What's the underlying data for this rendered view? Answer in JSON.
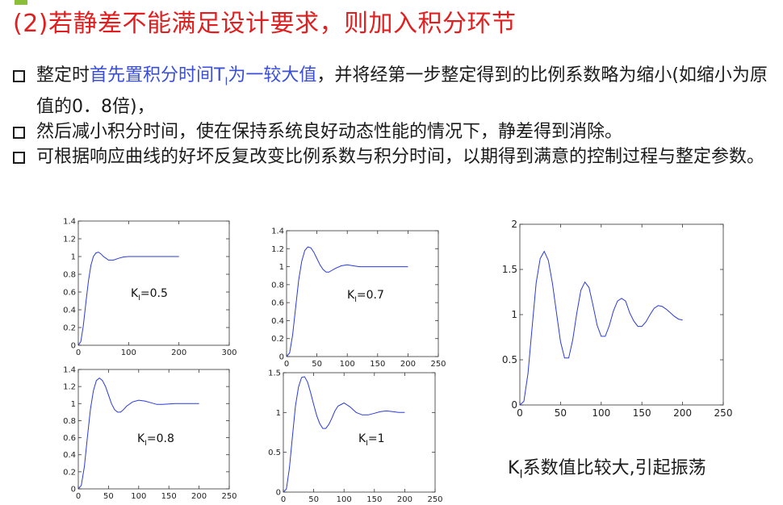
{
  "slide": {
    "title": "(2)若静差不能满足设计要求，则加入积分环节",
    "bullets": [
      {
        "pre": "整定时",
        "highlight_a": "首先置积分时间T",
        "highlight_sub": "I",
        "highlight_b": "为一较大值",
        "post": "，并将经第一步整定得到的比例系数略为缩小(如缩小为原值的0．8倍)，"
      },
      {
        "text": "然后减小积分时间，使在保持系统良好动态性能的情况下，静差得到消除。"
      },
      {
        "text": "可根据响应曲线的好坏反复改变比例系数与积分时间，以期得到满意的控制过程与整定参数。"
      }
    ],
    "caption": {
      "k": "K",
      "sub": "I",
      "text": "系数值比较大,引起振荡"
    },
    "colors": {
      "title": "#e02020",
      "highlight": "#3a4ddb",
      "curve": "#2a3bd8"
    }
  },
  "chart_data": [
    {
      "type": "line",
      "annotation": {
        "k": "K",
        "sub": "I",
        "value": "=0.5"
      },
      "xlim": [
        0,
        300
      ],
      "ylim": [
        0,
        1.4
      ],
      "xticks": [
        0,
        100,
        200,
        300
      ],
      "yticks": [
        0,
        0.2,
        0.4,
        0.6,
        0.8,
        1,
        1.2,
        1.4
      ],
      "xticklabels": [
        "0",
        "100",
        "200",
        "300"
      ],
      "yticklabels": [
        "0",
        "0.2",
        "0.4",
        "0.6",
        "0.8",
        "1",
        "1.2",
        "1.4"
      ],
      "series": [
        {
          "x": [
            0,
            5,
            10,
            15,
            20,
            25,
            30,
            35,
            40,
            45,
            50,
            55,
            60,
            70,
            80,
            90,
            100,
            120,
            140,
            160,
            180,
            200
          ],
          "y": [
            0,
            0.04,
            0.22,
            0.48,
            0.72,
            0.9,
            1.0,
            1.04,
            1.05,
            1.03,
            1.0,
            0.98,
            0.96,
            0.96,
            0.98,
            0.995,
            1.0,
            1.0,
            1.0,
            1.0,
            1.0,
            1.0
          ]
        }
      ]
    },
    {
      "type": "line",
      "annotation": {
        "k": "K",
        "sub": "I",
        "value": "=0.7"
      },
      "xlim": [
        0,
        250
      ],
      "ylim": [
        0,
        1.4
      ],
      "xticks": [
        0,
        50,
        100,
        150,
        200,
        250
      ],
      "yticks": [
        0,
        0.2,
        0.4,
        0.6,
        0.8,
        1,
        1.2,
        1.4
      ],
      "xticklabels": [
        "0",
        "50",
        "100",
        "150",
        "200",
        "250"
      ],
      "yticklabels": [
        "0",
        "0.2",
        "0.4",
        "0.6",
        "0.8",
        "1",
        "1.2",
        "1.4"
      ],
      "series": [
        {
          "x": [
            0,
            5,
            10,
            15,
            20,
            25,
            30,
            35,
            40,
            45,
            50,
            55,
            60,
            65,
            70,
            75,
            80,
            90,
            100,
            110,
            120,
            140,
            160,
            180,
            200
          ],
          "y": [
            0,
            0.04,
            0.24,
            0.55,
            0.85,
            1.06,
            1.18,
            1.22,
            1.21,
            1.16,
            1.09,
            1.02,
            0.97,
            0.94,
            0.94,
            0.96,
            0.98,
            1.01,
            1.02,
            1.01,
            1.0,
            1.0,
            1.0,
            1.0,
            1.0
          ]
        }
      ]
    },
    {
      "type": "line",
      "annotation": {
        "k": "K",
        "sub": "I",
        "value": "=0.8"
      },
      "xlim": [
        0,
        250
      ],
      "ylim": [
        0,
        1.4
      ],
      "xticks": [
        0,
        50,
        100,
        150,
        200,
        250
      ],
      "yticks": [
        0,
        0.2,
        0.4,
        0.6,
        0.8,
        1,
        1.2,
        1.4
      ],
      "xticklabels": [
        "0",
        "50",
        "100",
        "150",
        "200",
        "250"
      ],
      "yticklabels": [
        "0",
        "0.2",
        "0.4",
        "0.6",
        "0.8",
        "1",
        "1.2",
        "1.4"
      ],
      "series": [
        {
          "x": [
            0,
            5,
            10,
            15,
            20,
            25,
            30,
            35,
            40,
            45,
            50,
            55,
            60,
            65,
            70,
            75,
            80,
            90,
            100,
            110,
            120,
            130,
            140,
            160,
            180,
            200
          ],
          "y": [
            0,
            0.04,
            0.26,
            0.6,
            0.93,
            1.15,
            1.27,
            1.3,
            1.27,
            1.2,
            1.1,
            1.0,
            0.93,
            0.9,
            0.9,
            0.93,
            0.97,
            1.02,
            1.04,
            1.03,
            1.01,
            0.99,
            0.99,
            1.0,
            1.0,
            1.0
          ]
        }
      ]
    },
    {
      "type": "line",
      "annotation": {
        "k": "K",
        "sub": "I",
        "value": "=1"
      },
      "xlim": [
        0,
        250
      ],
      "ylim": [
        0,
        1.5
      ],
      "xticks": [
        0,
        50,
        100,
        150,
        200,
        250
      ],
      "yticks": [
        0,
        0.5,
        1,
        1.5
      ],
      "xticklabels": [
        "0",
        "50",
        "100",
        "150",
        "200",
        "250"
      ],
      "yticklabels": [
        "0",
        "0.5",
        "1",
        "1.5"
      ],
      "series": [
        {
          "x": [
            0,
            5,
            10,
            15,
            20,
            25,
            30,
            35,
            40,
            45,
            50,
            55,
            60,
            65,
            70,
            75,
            80,
            85,
            90,
            100,
            110,
            120,
            130,
            140,
            150,
            160,
            170,
            180,
            190,
            200
          ],
          "y": [
            0,
            0.04,
            0.3,
            0.7,
            1.08,
            1.32,
            1.44,
            1.45,
            1.38,
            1.25,
            1.1,
            0.96,
            0.86,
            0.8,
            0.8,
            0.85,
            0.93,
            1.02,
            1.08,
            1.12,
            1.07,
            1.0,
            0.97,
            0.97,
            0.99,
            1.01,
            1.02,
            1.01,
            1.0,
            1.0
          ]
        }
      ]
    },
    {
      "type": "line",
      "xlim": [
        0,
        250
      ],
      "ylim": [
        0,
        2
      ],
      "xticks": [
        0,
        50,
        100,
        150,
        200,
        250
      ],
      "yticks": [
        0,
        0.5,
        1,
        1.5,
        2
      ],
      "xticklabels": [
        "0",
        "50",
        "100",
        "150",
        "200",
        "250"
      ],
      "yticklabels": [
        "0",
        "0.5",
        "1",
        "1.5",
        "2"
      ],
      "series": [
        {
          "x": [
            0,
            5,
            10,
            15,
            20,
            25,
            30,
            35,
            40,
            45,
            50,
            55,
            60,
            65,
            70,
            75,
            80,
            85,
            90,
            95,
            100,
            105,
            110,
            115,
            120,
            125,
            130,
            135,
            140,
            145,
            150,
            155,
            160,
            165,
            170,
            175,
            180,
            185,
            190,
            195,
            200
          ],
          "y": [
            0,
            0.04,
            0.35,
            0.85,
            1.35,
            1.62,
            1.7,
            1.6,
            1.35,
            1.02,
            0.7,
            0.52,
            0.52,
            0.72,
            1.02,
            1.27,
            1.36,
            1.3,
            1.1,
            0.88,
            0.76,
            0.76,
            0.88,
            1.04,
            1.15,
            1.18,
            1.15,
            1.02,
            0.93,
            0.87,
            0.87,
            0.92,
            1.0,
            1.07,
            1.1,
            1.09,
            1.06,
            1.02,
            0.98,
            0.95,
            0.94
          ]
        }
      ]
    }
  ]
}
